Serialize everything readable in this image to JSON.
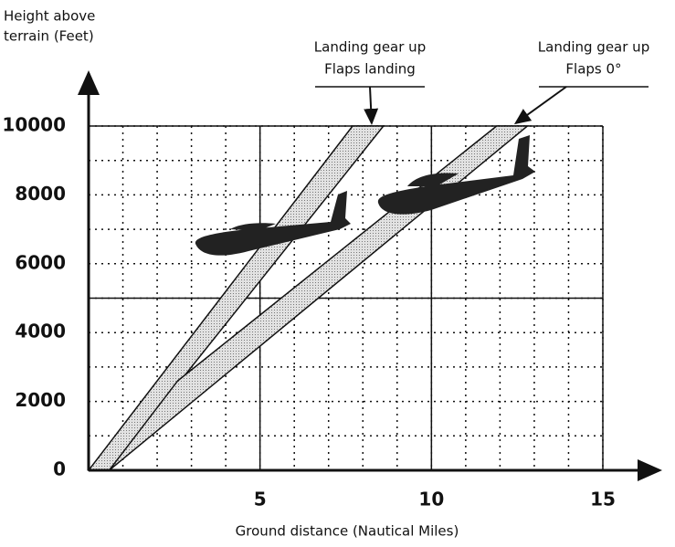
{
  "chart_data": {
    "type": "area",
    "y_label": [
      "Height above",
      "terrain (Feet)"
    ],
    "x_label": "Ground distance  (Nautical Miles)",
    "xlim": [
      0,
      15
    ],
    "ylim": [
      0,
      10000
    ],
    "xticks": [
      5,
      10,
      15
    ],
    "yticks": [
      0,
      2000,
      4000,
      6000,
      8000,
      10000
    ],
    "minor_xticks": [
      1,
      2,
      3,
      4,
      5,
      6,
      7,
      8,
      9,
      10,
      11,
      12,
      13,
      14,
      15
    ],
    "minor_yticks": [
      1000,
      2000,
      3000,
      4000,
      5000,
      6000,
      7000,
      8000,
      9000,
      10000
    ],
    "major_xgrid": [
      5,
      10,
      15
    ],
    "major_ygrid": [
      5000,
      10000
    ],
    "series": [
      {
        "label": [
          "Landing gear up",
          "Flaps landing"
        ],
        "color": "#c8c8c8",
        "x": [
          0,
          7.7,
          8.6,
          0.6
        ],
        "y": [
          0,
          10000,
          10000,
          0
        ]
      },
      {
        "label": [
          "Landing gear up",
          "Flaps 0°"
        ],
        "color": "#c8c8c8",
        "x": [
          2.6,
          11.9,
          12.8,
          0.6
        ],
        "y": [
          2600,
          10000,
          10000,
          0
        ]
      }
    ]
  }
}
